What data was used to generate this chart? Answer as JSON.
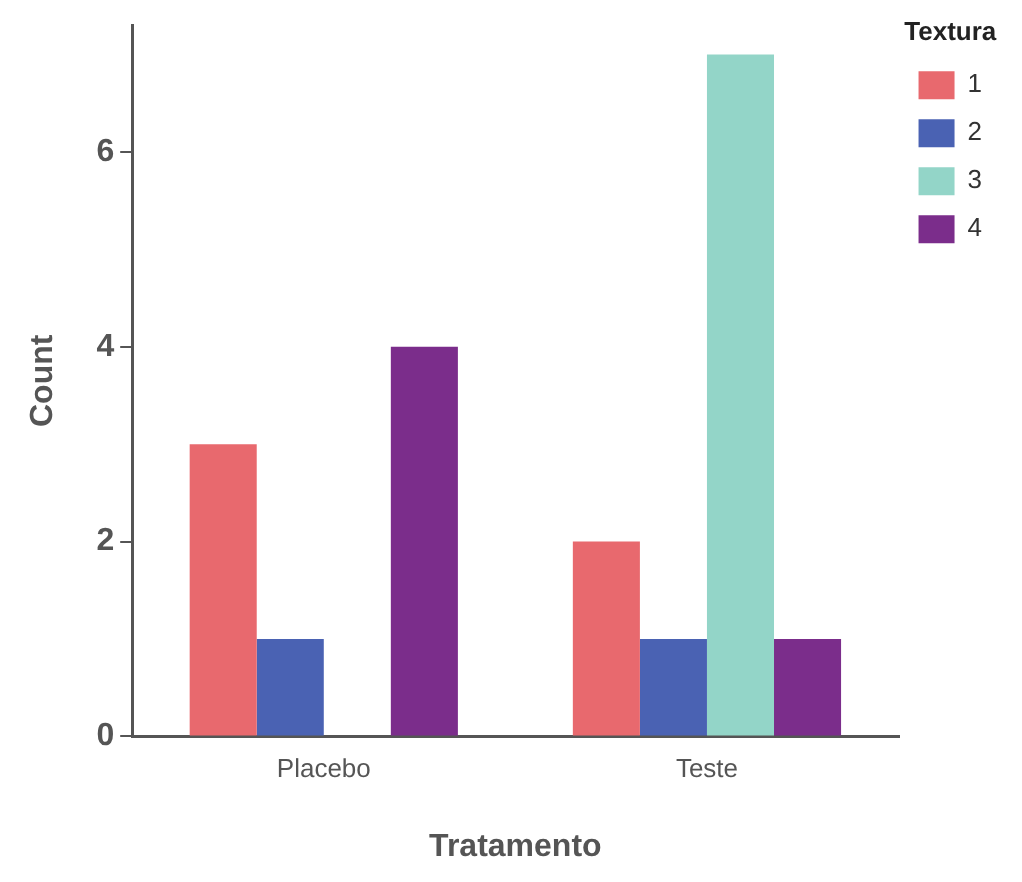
{
  "chart_data": {
    "type": "bar",
    "xlabel": "Tratamento",
    "ylabel": "Count",
    "legend_title": "Textura",
    "categories": [
      "Placebo",
      "Teste"
    ],
    "series": [
      {
        "name": "1",
        "color": "#e8696e",
        "values": [
          3,
          2
        ]
      },
      {
        "name": "2",
        "color": "#4a62b3",
        "values": [
          1,
          1
        ]
      },
      {
        "name": "3",
        "color": "#93d5c8",
        "values": [
          0,
          7
        ]
      },
      {
        "name": "4",
        "color": "#7b2d8b",
        "values": [
          4,
          1
        ]
      }
    ],
    "ylim": [
      0,
      7.3
    ],
    "yticks": [
      0,
      2,
      4,
      6
    ],
    "grid": false,
    "legend": "top right"
  }
}
